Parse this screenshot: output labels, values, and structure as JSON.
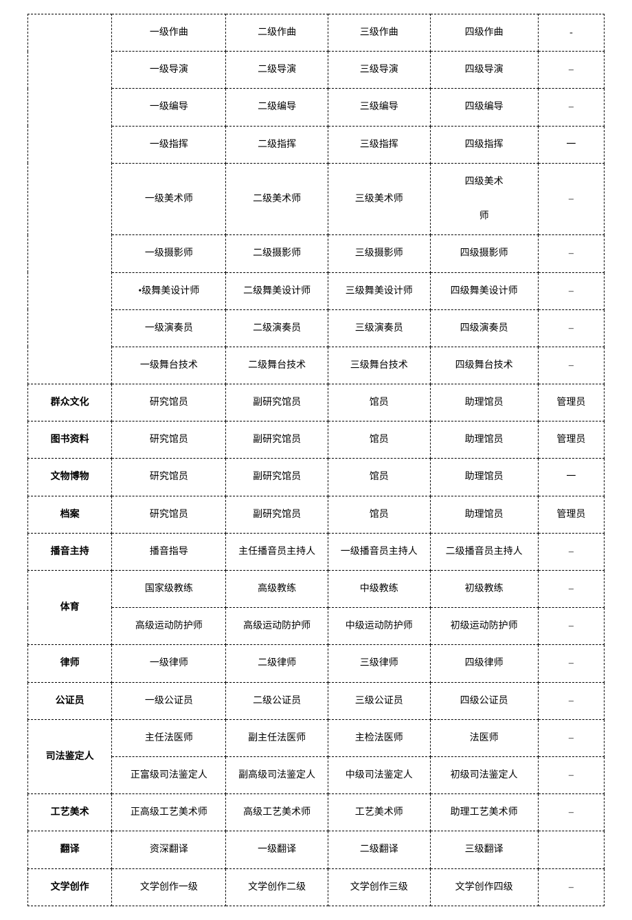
{
  "table": {
    "colors": {
      "border": "#000000",
      "text": "#000000",
      "background": "#ffffff"
    },
    "font_size": 14,
    "column_widths": [
      "14%",
      "19%",
      "17%",
      "17%",
      "18%",
      "11%"
    ],
    "rows": [
      {
        "cat": "",
        "c1": "一级作曲",
        "c2": "二级作曲",
        "c3": "三级作曲",
        "c4": "四级作曲",
        "c5": "-"
      },
      {
        "cat": "",
        "c1": "一级导演",
        "c2": "二级导演",
        "c3": "三级导演",
        "c4": "四级导演",
        "c5": "–"
      },
      {
        "cat": "",
        "c1": "一级编导",
        "c2": "二级编导",
        "c3": "三级编导",
        "c4": "四级编导",
        "c5": "–"
      },
      {
        "cat": "",
        "c1": "一级指挥",
        "c2": "二级指挥",
        "c3": "三级指挥",
        "c4": "四级指挥",
        "c5": "一"
      },
      {
        "cat": "",
        "c1": "一级美术师",
        "c2": "二级美术师",
        "c3": "三级美术师",
        "c4": "四级美术\n师",
        "c5": "–"
      },
      {
        "cat": "",
        "c1": "一级摄影师",
        "c2": "二级摄影师",
        "c3": "三级摄影师",
        "c4": "四级摄影师",
        "c5": "–"
      },
      {
        "cat": "",
        "c1": "•级舞美设计师",
        "c2": "二级舞美设计师",
        "c3": "三级舞美设计师",
        "c4": "四级舞美设计师",
        "c5": "–"
      },
      {
        "cat": "",
        "c1": "一级演奏员",
        "c2": "二级演奏员",
        "c3": "三级演奏员",
        "c4": "四级演奏员",
        "c5": "–"
      },
      {
        "cat": "",
        "c1": "一级舞台技术",
        "c2": "二级舞台技术",
        "c3": "三级舞台技术",
        "c4": "四级舞台技术",
        "c5": "–"
      },
      {
        "cat": "群众文化",
        "c1": "研究馆员",
        "c2": "副研究馆员",
        "c3": "馆员",
        "c4": "助理馆员",
        "c5": "管理员"
      },
      {
        "cat": "图书资料",
        "c1": "研究馆员",
        "c2": "副研究馆员",
        "c3": "馆员",
        "c4": "助理馆员",
        "c5": "管理员"
      },
      {
        "cat": "文物博物",
        "c1": "研究馆员",
        "c2": "副研究馆员",
        "c3": "馆员",
        "c4": "助理馆员",
        "c5": "一"
      },
      {
        "cat": "档案",
        "c1": "研究馆员",
        "c2": "副研究馆员",
        "c3": "馆员",
        "c4": "助理馆员",
        "c5": "管理员"
      },
      {
        "cat": "播音主持",
        "c1": "播音指导",
        "c2": "主任播音员主持人",
        "c3": "一级播音员主持人",
        "c4": "二级播音员主持人",
        "c5": "–"
      },
      {
        "cat": "体育",
        "c1": "国家级教练",
        "c2": "高级教练",
        "c3": "中级教练",
        "c4": "初级教练",
        "c5": "–"
      },
      {
        "cat": "",
        "c1": "高级运动防护师",
        "c2": "高级运动防护师",
        "c3": "中级运动防护师",
        "c4": "初级运动防护师",
        "c5": "–"
      },
      {
        "cat": "律师",
        "c1": "一级律师",
        "c2": "二级律师",
        "c3": "三级律师",
        "c4": "四级律师",
        "c5": "–"
      },
      {
        "cat": "公证员",
        "c1": "一级公证员",
        "c2": "二级公证员",
        "c3": "三级公证员",
        "c4": "四级公证员",
        "c5": "–"
      },
      {
        "cat": "司法鉴定人",
        "c1": "主任法医师",
        "c2": "副主任法医师",
        "c3": "主检法医师",
        "c4": "法医师",
        "c5": "–"
      },
      {
        "cat": "",
        "c1": "正富级司法鉴定人",
        "c2": "副高级司法鉴定人",
        "c3": "中级司法鉴定人",
        "c4": "初级司法鉴定人",
        "c5": "–"
      },
      {
        "cat": "工艺美术",
        "c1": "正高级工艺美术师",
        "c2": "高级工艺美术师",
        "c3": "工艺美术师",
        "c4": "助理工艺美术师",
        "c5": "–"
      },
      {
        "cat": "翻译",
        "c1": "资深翻译",
        "c2": "一级翻译",
        "c3": "二级翻译",
        "c4": "三级翻译",
        "c5": ""
      },
      {
        "cat": "文学创作",
        "c1": "文学创作一级",
        "c2": "文学创作二级",
        "c3": "文学创作三级",
        "c4": "文学创作四级",
        "c5": "–"
      }
    ],
    "rowspans": {
      "0": 9,
      "14": 2,
      "18": 2
    }
  }
}
